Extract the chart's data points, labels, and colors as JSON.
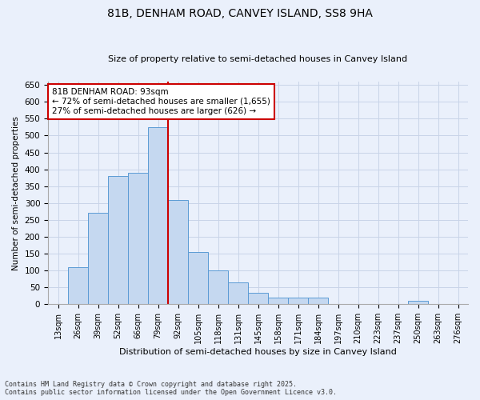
{
  "title": "81B, DENHAM ROAD, CANVEY ISLAND, SS8 9HA",
  "subtitle": "Size of property relative to semi-detached houses in Canvey Island",
  "xlabel": "Distribution of semi-detached houses by size in Canvey Island",
  "ylabel": "Number of semi-detached properties",
  "footnote1": "Contains HM Land Registry data © Crown copyright and database right 2025.",
  "footnote2": "Contains public sector information licensed under the Open Government Licence v3.0.",
  "bin_labels": [
    "13sqm",
    "26sqm",
    "39sqm",
    "52sqm",
    "66sqm",
    "79sqm",
    "92sqm",
    "105sqm",
    "118sqm",
    "131sqm",
    "145sqm",
    "158sqm",
    "171sqm",
    "184sqm",
    "197sqm",
    "210sqm",
    "223sqm",
    "237sqm",
    "250sqm",
    "263sqm",
    "276sqm"
  ],
  "heights": [
    0,
    110,
    270,
    380,
    390,
    525,
    310,
    155,
    100,
    65,
    35,
    20,
    20,
    20,
    0,
    0,
    0,
    0,
    10,
    0,
    0
  ],
  "bar_color": "#c5d8f0",
  "bar_edge_color": "#5b9bd5",
  "grid_color": "#c8d4e8",
  "background_color": "#eaf0fb",
  "vline_index": 6,
  "vline_color": "#cc0000",
  "annotation_text": "81B DENHAM ROAD: 93sqm\n← 72% of semi-detached houses are smaller (1,655)\n27% of semi-detached houses are larger (626) →",
  "annotation_box_color": "#ffffff",
  "annotation_box_edge": "#cc0000",
  "ylim": [
    0,
    660
  ],
  "yticks": [
    0,
    50,
    100,
    150,
    200,
    250,
    300,
    350,
    400,
    450,
    500,
    550,
    600,
    650
  ]
}
